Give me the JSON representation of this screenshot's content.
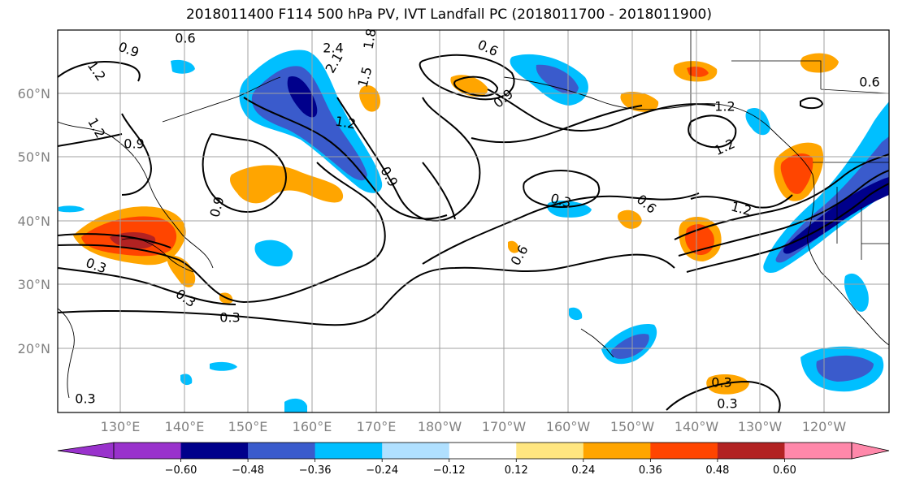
{
  "title": "2018011400 F114 500 hPa PV, IVT Landfall PC (2018011700 - 2018011900)",
  "map": {
    "lon_labels": [
      "130°E",
      "140°E",
      "150°E",
      "160°E",
      "170°E",
      "180°W",
      "170°W",
      "160°W",
      "150°W",
      "140°W",
      "130°W",
      "120°W"
    ],
    "lat_labels": [
      "60°N",
      "50°N",
      "40°N",
      "30°N",
      "20°N"
    ],
    "contour_labels": [
      "0.6",
      "0.9",
      "1.2",
      "1.2",
      "0.9",
      "2.4",
      "2.1",
      "1.8",
      "1.5",
      "1.2",
      "0.9",
      "0.6",
      "0.9",
      "1.2",
      "1.2",
      "0.9",
      "0.3",
      "0.6",
      "1.2",
      "0.6",
      "0.3",
      "0.3",
      "0.3",
      "0.3",
      "0.3",
      "0.6",
      "0.3"
    ]
  },
  "colorbar": {
    "labels": [
      "−0.60",
      "−0.48",
      "−0.36",
      "−0.24",
      "−0.12",
      "0.12",
      "0.24",
      "0.36",
      "0.48",
      "0.60"
    ],
    "colors": [
      "#9932cc",
      "#00008b",
      "#3a5bcc",
      "#00bfff",
      "#b0e0ff",
      "#ffffff",
      "#ffe680",
      "#ffa500",
      "#ff4500",
      "#b22222",
      "#ff88aa"
    ]
  }
}
